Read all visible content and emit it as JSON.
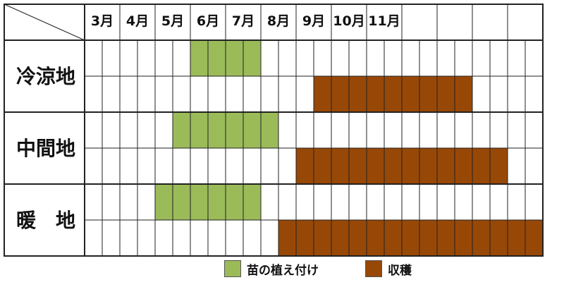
{
  "schedule": {
    "months": [
      "3月",
      "4月",
      "5月",
      "6月",
      "7月",
      "8月",
      "9月",
      "10月",
      "11月"
    ],
    "regions": [
      {
        "label": "冷涼地",
        "planting": [
          6,
          10
        ],
        "harvest": [
          13,
          22
        ]
      },
      {
        "label": "中間地",
        "planting": [
          5,
          11
        ],
        "harvest": [
          12,
          24
        ]
      },
      {
        "label": "暖　地",
        "planting": [
          4,
          10
        ],
        "harvest": [
          11,
          26
        ]
      }
    ],
    "colors": {
      "planting": "#9bbb59",
      "harvest": "#984806",
      "grid": "#222222"
    }
  },
  "legend": {
    "planting_label": "苗の植え付け",
    "harvest_label": "収穫"
  }
}
